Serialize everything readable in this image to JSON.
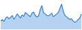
{
  "chart_data": {
    "type": "area",
    "categories": [
      null,
      null,
      null,
      null,
      null,
      null,
      null,
      null,
      null,
      null,
      null,
      null,
      null,
      null,
      null,
      null,
      null,
      null,
      null,
      null,
      null,
      null,
      null,
      null,
      null,
      null,
      null,
      null,
      null,
      null,
      null,
      null,
      null,
      null,
      null,
      null,
      null,
      null,
      null,
      null,
      null,
      null,
      null,
      null,
      null,
      null,
      null,
      null,
      null,
      null
    ],
    "values": [
      30,
      35,
      28,
      40,
      45,
      38,
      42,
      50,
      36,
      44,
      55,
      48,
      40,
      52,
      46,
      60,
      55,
      50,
      45,
      58,
      62,
      50,
      44,
      48,
      70,
      85,
      60,
      55,
      50,
      48,
      52,
      58,
      45,
      50,
      55,
      60,
      75,
      90,
      65,
      50,
      45,
      40,
      35,
      38,
      30,
      25,
      28,
      35,
      40,
      55
    ],
    "color": "#2f7ed8",
    "ylim": [
      0,
      100
    ],
    "grid": false,
    "tick_labels": false
  }
}
